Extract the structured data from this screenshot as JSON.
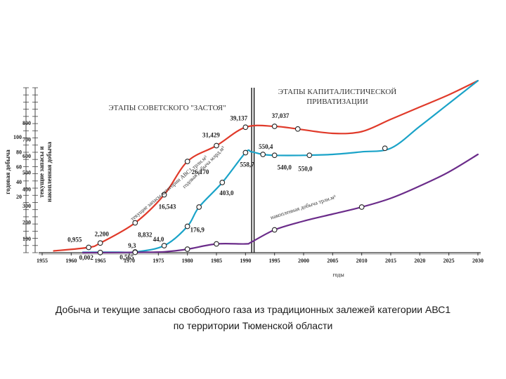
{
  "chart_data": {
    "type": "line",
    "xlabel": "годы",
    "y_axis_labels": [
      "годовая добыча",
      "текущие запасы и накопленная добыча"
    ],
    "x_ticks": [
      1955,
      1960,
      1965,
      1970,
      1975,
      1980,
      1985,
      1990,
      1995,
      2000,
      2005,
      2010,
      2015,
      2020,
      2025,
      2030
    ],
    "y_ticks_left": [
      "20",
      "40",
      "60",
      "80",
      "100"
    ],
    "y_ticks_right": [
      "100",
      "200",
      "300",
      "400",
      "500",
      "600",
      "700",
      "800"
    ],
    "xlim": [
      1955,
      2030
    ],
    "ylim": [
      0,
      800
    ],
    "annotations": {
      "soviet_stage": "ЭТАПЫ СОВЕТСКОГО \"ЗАСТОЯ\"",
      "capitalist_stage_line1": "ЭТАПЫ КАПИТАЛИСТИЧЕСКОЙ",
      "capitalist_stage_line2": "ПРИВАТИЗАЦИИ"
    },
    "series": [
      {
        "name": "текущие запасы категории АВС1 трлн.м³",
        "color": "#e03a2a",
        "x": [
          1957,
          1963,
          1965,
          1971,
          1976,
          1980,
          1985,
          1990,
          1995,
          1999,
          2005,
          2010,
          2015,
          2020,
          2025,
          2030
        ],
        "y": [
          10,
          30,
          55,
          170,
          330,
          520,
          610,
          715,
          720,
          705,
          680,
          690,
          760,
          830,
          900,
          980
        ],
        "points": [
          {
            "x": 1963,
            "y": 30,
            "label": "0,955"
          },
          {
            "x": 1965,
            "y": 55,
            "label": "2,200"
          },
          {
            "x": 1971,
            "y": 170,
            "label": "8,832"
          },
          {
            "x": 1976,
            "y": 330,
            "label": "16,543"
          },
          {
            "x": 1980,
            "y": 520,
            "label": "26,170"
          },
          {
            "x": 1985,
            "y": 610,
            "label": "31,429"
          },
          {
            "x": 1990,
            "y": 715,
            "label": "39,137"
          },
          {
            "x": 1995,
            "y": 720,
            "label": "37,037"
          },
          {
            "x": 1999,
            "y": 705,
            "label": ""
          }
        ]
      },
      {
        "name": "годовая добыча млрд.м³",
        "color": "#1aa3c8",
        "x": [
          1962,
          1968,
          1971,
          1976,
          1980,
          1982,
          1986,
          1990,
          1991,
          1993,
          1995,
          2000,
          2005,
          2010,
          2015,
          2020,
          2025,
          2030
        ],
        "y": [
          2,
          3,
          4,
          40,
          150,
          260,
          400,
          570,
          575,
          560,
          555,
          555,
          560,
          575,
          595,
          720,
          850,
          980
        ],
        "points": [
          {
            "x": 1971,
            "y": 4,
            "label": "9,3"
          },
          {
            "x": 1976,
            "y": 40,
            "label": "44,0"
          },
          {
            "x": 1980,
            "y": 150,
            "label": "176,9"
          },
          {
            "x": 1982,
            "y": 260,
            "label": ""
          },
          {
            "x": 1986,
            "y": 400,
            "label": "403,0"
          },
          {
            "x": 1990,
            "y": 570,
            "label": "558,7"
          },
          {
            "x": 1993,
            "y": 560,
            "label": "550,4"
          },
          {
            "x": 1995,
            "y": 555,
            "label": "540,0"
          },
          {
            "x": 2001,
            "y": 555,
            "label": "550,0"
          },
          {
            "x": 2014,
            "y": 595,
            "label": ""
          }
        ]
      },
      {
        "name": "накопленная добыча трлн.м³",
        "color": "#6b2c8a",
        "x": [
          1962,
          1968,
          1971,
          1976,
          1980,
          1985,
          1990,
          1991,
          1995,
          2000,
          2005,
          2010,
          2015,
          2020,
          2025,
          2030
        ],
        "y": [
          0,
          1,
          2,
          5,
          20,
          50,
          50,
          60,
          130,
          180,
          220,
          260,
          310,
          380,
          460,
          560
        ],
        "points": [
          {
            "x": 1965,
            "y": 1,
            "label": "0,002"
          },
          {
            "x": 1971,
            "y": 2,
            "label": "0,565"
          },
          {
            "x": 1980,
            "y": 20,
            "label": ""
          },
          {
            "x": 1985,
            "y": 50,
            "label": ""
          },
          {
            "x": 1995,
            "y": 130,
            "label": ""
          },
          {
            "x": 2010,
            "y": 260,
            "label": ""
          }
        ]
      }
    ]
  },
  "caption": {
    "line1": "Добыча и текущие запасы свободного газа из традиционных залежей категории АВС1",
    "line2": "по территории Тюменской области"
  }
}
